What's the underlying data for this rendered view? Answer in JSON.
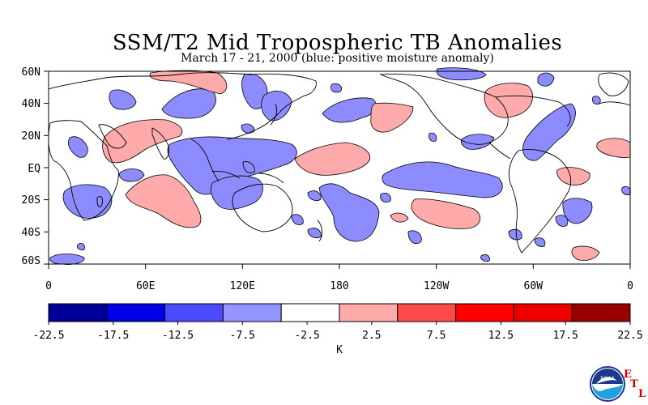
{
  "title": "SSM/T2 Mid Tropospheric TB Anomalies",
  "subtitle": "March 17 - 21, 2000 (blue: positive moisture anomaly)",
  "map": {
    "lat_labels": [
      "60N",
      "40N",
      "20N",
      "EQ",
      "20S",
      "40S",
      "60S"
    ],
    "lon_labels": [
      "0",
      "60E",
      "120E",
      "180",
      "120W",
      "60W",
      "0"
    ],
    "positive_color": "#ffaaaa",
    "negative_color": "#8c8cff"
  },
  "colorbar": {
    "unit": "K",
    "tick_labels": [
      "-22.5",
      "-17.5",
      "-12.5",
      "-7.5",
      "-2.5",
      "2.5",
      "7.5",
      "12.5",
      "17.5",
      "22.5"
    ],
    "colors": [
      "#000099",
      "#0000e6",
      "#4a4aff",
      "#9595ff",
      "#ffffff",
      "#ffaaaa",
      "#ff4a4a",
      "#ff0000",
      "#ee0000",
      "#990000"
    ]
  },
  "logo": {
    "text": "NOAA",
    "etl_letters": [
      "E",
      "T",
      "L"
    ]
  }
}
